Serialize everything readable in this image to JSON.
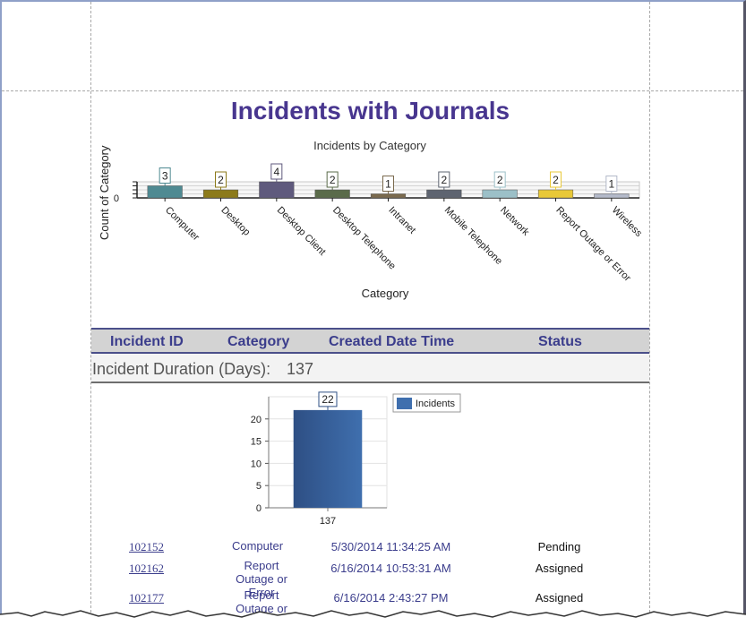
{
  "report": {
    "title": "Incidents with Journals"
  },
  "chart_data": [
    {
      "type": "bar",
      "title": "Incidents by Category",
      "xlabel": "Category",
      "ylabel": "Count of Category",
      "categories": [
        "Computer",
        "Desktop",
        "Desktop Client",
        "Desktop Telephone",
        "Intranet",
        "Mobile Telephone",
        "Network",
        "Report Outage or Error",
        "Wireless"
      ],
      "values": [
        3,
        2,
        4,
        2,
        1,
        2,
        2,
        2,
        1
      ],
      "colors": [
        "#4f8a92",
        "#8c7a1a",
        "#5f5a7d",
        "#5a6b4a",
        "#7a6a4e",
        "#5e6470",
        "#9cc0c8",
        "#e8c838",
        "#b3b9c9"
      ],
      "ylim": [
        0,
        4
      ],
      "y_tick_labels": [
        "0"
      ],
      "data_labels": true,
      "grid": true
    },
    {
      "type": "bar",
      "categories": [
        "137"
      ],
      "series": [
        {
          "name": "Incidents",
          "values": [
            22
          ]
        }
      ],
      "color": "#3f6fae",
      "ylim": [
        0,
        25
      ],
      "y_ticks": [
        0,
        5,
        10,
        15,
        20
      ],
      "data_labels": true,
      "legend": "top-right",
      "grid": true
    }
  ],
  "table": {
    "headers": {
      "incident_id": "Incident ID",
      "category": "Category",
      "created": "Created Date Time",
      "status": "Status"
    },
    "group": {
      "label": "Incident Duration (Days):",
      "value": "137"
    },
    "rows": [
      {
        "id": "102152",
        "category": "Computer",
        "created": "5/30/2014 11:34:25 AM",
        "status": "Pending"
      },
      {
        "id": "102162",
        "category": "Report Outage or Error",
        "created": "6/16/2014 10:53:31 AM",
        "status": "Assigned"
      },
      {
        "id": "102177",
        "category": "Report Outage or Error",
        "created": "6/16/2014 2:43:27 PM",
        "status": "Assigned"
      }
    ]
  }
}
